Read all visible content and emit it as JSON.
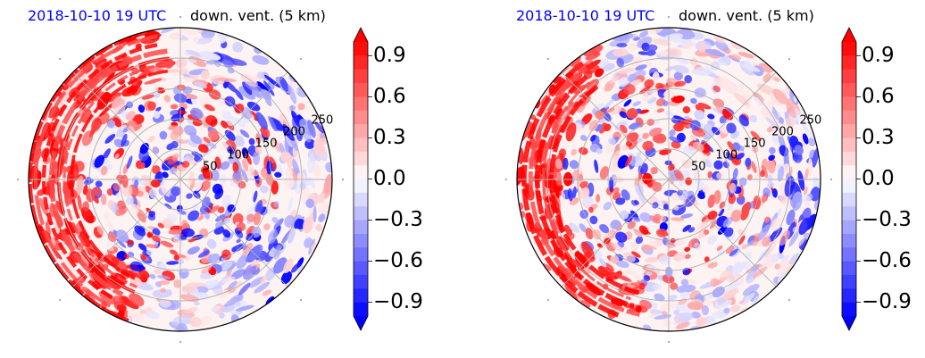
{
  "colors": {
    "date_title": "#0000ff",
    "positive": "#ff0000",
    "negative": "#0000ff",
    "neutral": "#ffffff",
    "grid": "#b0b0b0"
  },
  "chart_data": [
    {
      "type": "heatmap",
      "projection": "polar",
      "date_label": "2018-10-10 19 UTC",
      "title": "down. vent. (5 km)",
      "radial_ticks": [
        "50",
        "100",
        "150",
        "200",
        "250"
      ],
      "colorbar": {
        "ticks": [
          "0.9",
          "0.6",
          "0.3",
          "0.0",
          "−0.3",
          "−0.6",
          "−0.9"
        ],
        "range": [
          -1.0,
          1.0
        ],
        "extend": "both",
        "colormap": "bwr"
      },
      "grid": true,
      "pattern": {
        "red_band_angle_deg": [
          95,
          250
        ],
        "blue_arc_angle_deg": [
          15,
          75
        ],
        "blue_edge_angle_deg": [
          300,
          340
        ],
        "inner_mixed_radius": 110
      }
    },
    {
      "type": "heatmap",
      "projection": "polar",
      "date_label": "2018-10-10 19 UTC",
      "title": "down. vent. (5 km)",
      "radial_ticks": [
        "50",
        "100",
        "150",
        "200",
        "250"
      ],
      "colorbar": {
        "ticks": [
          "0.9",
          "0.6",
          "0.3",
          "0.0",
          "−0.3",
          "−0.6",
          "−0.9"
        ],
        "range": [
          -1.0,
          1.0
        ],
        "extend": "both",
        "colormap": "bwr"
      },
      "grid": true,
      "pattern": {
        "red_band_angle_deg": [
          120,
          260
        ],
        "blue_arc_angle_deg": [
          95,
          160
        ],
        "blue_edge_angle_deg": [
          330,
          20
        ],
        "inner_mixed_radius": 120
      }
    }
  ]
}
